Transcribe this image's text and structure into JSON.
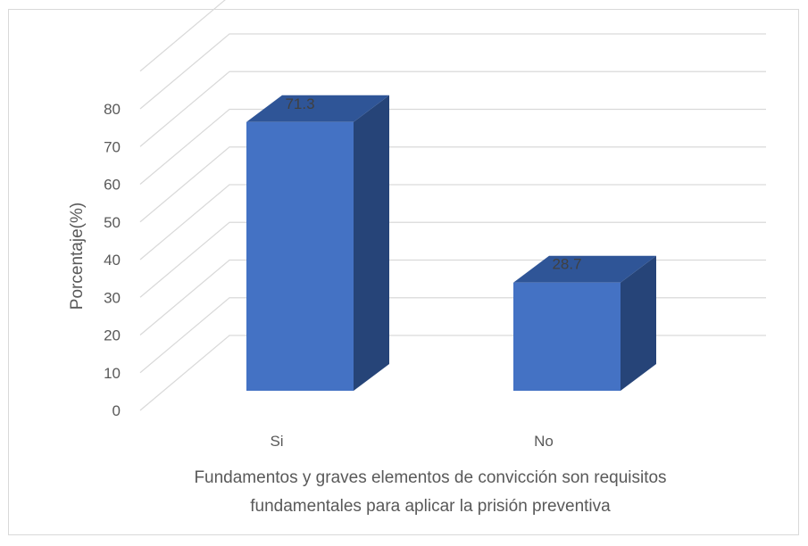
{
  "chart_data": {
    "type": "bar",
    "style": "3d-column",
    "categories": [
      "Si",
      "No"
    ],
    "values": [
      71.3,
      28.7
    ],
    "data_labels": [
      "71.3",
      "28.7"
    ],
    "ylabel": "Porcentaje(%)",
    "xlabel_lines": [
      "Fundamentos y graves elementos de convicción son requisitos",
      "fundamentales para aplicar la prisión preventiva"
    ],
    "ylim": [
      0,
      80
    ],
    "yticks": [
      "0",
      "10",
      "20",
      "30",
      "40",
      "50",
      "60",
      "70",
      "80"
    ],
    "grid": true,
    "legend": false,
    "colors": {
      "bar_front": "#4472c4",
      "bar_top": "#2f5597",
      "bar_side": "#264478",
      "grid": "#d9d9d9",
      "text": "#595959"
    }
  }
}
